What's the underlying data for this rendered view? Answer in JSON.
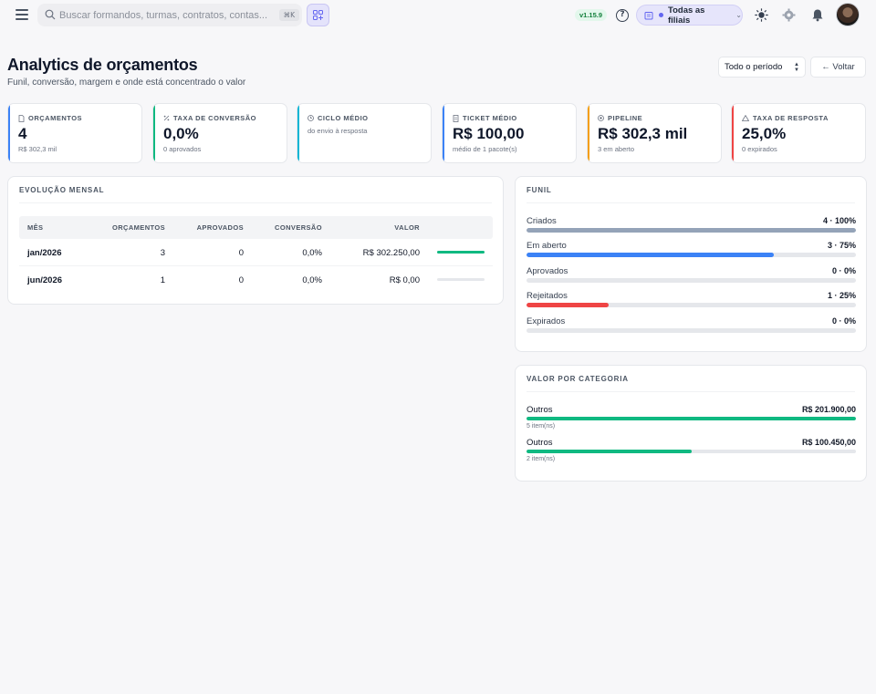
{
  "topbar": {
    "search_placeholder": "Buscar formandos, turmas, contratos, contas...",
    "search_shortcut": "⌘K",
    "version": "v1.15.9",
    "help": "?",
    "branch_label": "Todas as filiais",
    "branch_chevron": "⌄"
  },
  "header": {
    "title": "Analytics de orçamentos",
    "subtitle": "Funil, conversão, margem e onde está concentrado o valor",
    "period": "Todo o período",
    "back_label": "← Voltar"
  },
  "kpis": [
    {
      "label": "ORÇAMENTOS",
      "value": "4",
      "sub": "R$ 302,3 mil",
      "color": "#3b82f6"
    },
    {
      "label": "TAXA DE CONVERSÃO",
      "value": "0,0%",
      "sub": "0 aprovados",
      "color": "#10b981"
    },
    {
      "label": "CICLO MÉDIO",
      "value": "",
      "sub": "do envio à resposta",
      "color": "#06b6d4"
    },
    {
      "label": "TICKET MÉDIO",
      "value": "R$ 100,00",
      "sub": "médio de 1 pacote(s)",
      "color": "#3b82f6"
    },
    {
      "label": "PIPELINE",
      "value": "R$ 302,3 mil",
      "sub": "3 em aberto",
      "color": "#f59e0b"
    },
    {
      "label": "TAXA DE RESPOSTA",
      "value": "25,0%",
      "sub": "0 expirados",
      "color": "#ef4444"
    }
  ],
  "monthly": {
    "title": "EVOLUÇÃO MENSAL",
    "columns": [
      "MÊS",
      "ORÇAMENTOS",
      "APROVADOS",
      "CONVERSÃO",
      "VALOR"
    ],
    "rows": [
      {
        "month": "jan/2026",
        "quotes": "3",
        "approved": "0",
        "conversion": "0,0%",
        "value": "R$ 302.250,00",
        "share": 1.0
      },
      {
        "month": "jun/2026",
        "quotes": "1",
        "approved": "0",
        "conversion": "0,0%",
        "value": "R$ 0,00",
        "share": 0.0
      }
    ]
  },
  "funnel": {
    "title": "FUNIL",
    "rows": [
      {
        "label": "Criados",
        "value": "4 · 100%",
        "share": 1.0,
        "color": "#94a3b8"
      },
      {
        "label": "Em aberto",
        "value": "3 · 75%",
        "share": 0.75,
        "color": "#3b82f6"
      },
      {
        "label": "Aprovados",
        "value": "0 · 0%",
        "share": 0.0,
        "color": "#10b981"
      },
      {
        "label": "Rejeitados",
        "value": "1 · 25%",
        "share": 0.25,
        "color": "#ef4444"
      },
      {
        "label": "Expirados",
        "value": "0 · 0%",
        "share": 0.0,
        "color": "#94a3b8"
      }
    ]
  },
  "category": {
    "title": "VALOR POR CATEGORIA",
    "rows": [
      {
        "label": "Outros",
        "value": "R$ 201.900,00",
        "sub": "5 item(ns)",
        "share": 1.0
      },
      {
        "label": "Outros",
        "value": "R$ 100.450,00",
        "sub": "2 item(ns)",
        "share": 0.5
      }
    ]
  }
}
